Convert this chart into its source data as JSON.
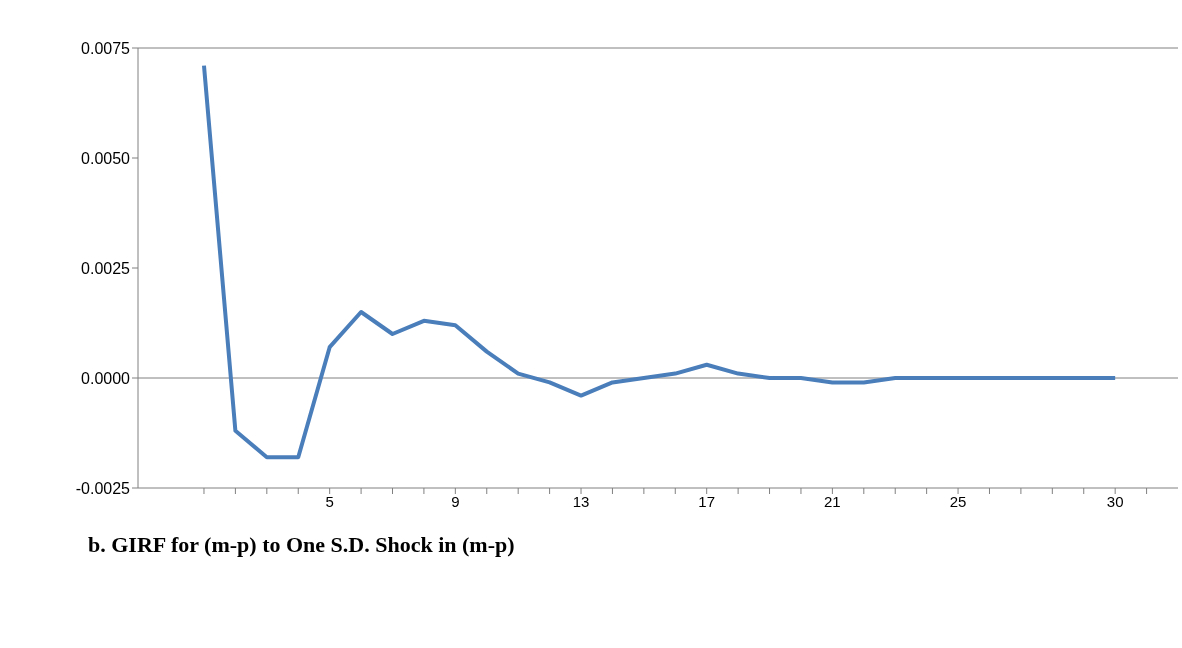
{
  "chart_data": {
    "type": "line",
    "title": "b. GIRF for (m-p) to One S.D. Shock in (m-p)",
    "x": [
      1,
      2,
      3,
      4,
      5,
      6,
      7,
      8,
      9,
      10,
      11,
      12,
      13,
      14,
      15,
      16,
      17,
      18,
      19,
      20,
      21,
      22,
      23,
      24,
      25,
      26,
      27,
      28,
      29,
      30
    ],
    "series": [
      {
        "color": "#4a7ebb",
        "values": [
          0.0071,
          -0.0012,
          -0.0018,
          -0.0018,
          0.0007,
          0.0015,
          0.001,
          0.0013,
          0.0012,
          0.0006,
          0.0001,
          -0.0001,
          -0.0004,
          -0.0001,
          0.0,
          0.0001,
          0.0003,
          0.0001,
          0.0,
          0.0,
          -0.0001,
          -0.0001,
          0.0,
          0.0,
          0.0,
          0.0,
          0.0,
          0.0,
          0.0,
          0.0
        ]
      }
    ],
    "xlim": [
      -1.1,
      32
    ],
    "xticks": [
      {
        "value": 1,
        "label": null
      },
      {
        "value": 2,
        "label": null
      },
      {
        "value": 3,
        "label": null
      },
      {
        "value": 4,
        "label": null
      },
      5,
      {
        "value": 6,
        "label": null
      },
      {
        "value": 7,
        "label": null
      },
      {
        "value": 8,
        "label": null
      },
      9,
      {
        "value": 10,
        "label": null
      },
      {
        "value": 11,
        "label": null
      },
      {
        "value": 12,
        "label": null
      },
      13,
      {
        "value": 14,
        "label": null
      },
      {
        "value": 15,
        "label": null
      },
      {
        "value": 16,
        "label": null
      },
      17,
      {
        "value": 18,
        "label": null
      },
      {
        "value": 19,
        "label": null
      },
      {
        "value": 20,
        "label": null
      },
      21,
      {
        "value": 22,
        "label": null
      },
      {
        "value": 23,
        "label": null
      },
      {
        "value": 24,
        "label": null
      },
      25,
      {
        "value": 26,
        "label": null
      },
      {
        "value": 27,
        "label": null
      },
      {
        "value": 28,
        "label": null
      },
      {
        "value": 29,
        "label": null
      },
      30,
      {
        "value": 31,
        "label": null
      }
    ],
    "ylim": [
      -0.0025,
      0.0075
    ],
    "yticks": [
      {
        "value": -0.0025,
        "label": "-0.0025"
      },
      {
        "value": 0,
        "label": "0.0000"
      },
      {
        "value": 0.0025,
        "label": "0.0025"
      },
      {
        "value": 0.005,
        "label": "0.0050"
      },
      {
        "value": 0.0075,
        "label": "0.0075"
      }
    ],
    "ref_lines": [
      {
        "axis": "y",
        "value": 0,
        "color": "#808080"
      }
    ],
    "marker": "none",
    "line_style": "solid",
    "grid": false,
    "legend": false
  }
}
